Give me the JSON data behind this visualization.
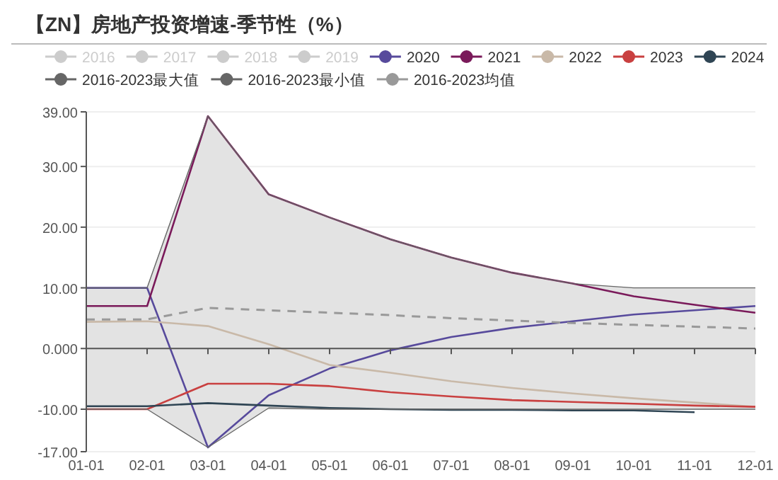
{
  "chart_data": {
    "type": "line",
    "title": "【ZN】房地产投资增速-季节性（%）",
    "categories": [
      "01-01",
      "02-01",
      "03-01",
      "04-01",
      "05-01",
      "06-01",
      "07-01",
      "08-01",
      "09-01",
      "10-01",
      "11-01",
      "12-01"
    ],
    "ylim": [
      -17,
      39
    ],
    "yticks": [
      {
        "value": 39,
        "label": "39.00"
      },
      {
        "value": 30,
        "label": "30.00"
      },
      {
        "value": 20,
        "label": "20.00"
      },
      {
        "value": 10,
        "label": "10.00"
      },
      {
        "value": 0,
        "label": "0.000"
      },
      {
        "value": -10,
        "label": "-10.00"
      },
      {
        "value": -17,
        "label": "-17.00"
      }
    ],
    "grid": "y",
    "legend": "top",
    "series": [
      {
        "name": "2016",
        "color": "#cccccc",
        "values": [
          null,
          null,
          null,
          null,
          null,
          null,
          null,
          null,
          null,
          null,
          null,
          null
        ]
      },
      {
        "name": "2017",
        "color": "#cccccc",
        "values": [
          null,
          null,
          null,
          null,
          null,
          null,
          null,
          null,
          null,
          null,
          null,
          null
        ]
      },
      {
        "name": "2018",
        "color": "#cccccc",
        "values": [
          null,
          null,
          null,
          null,
          null,
          null,
          null,
          null,
          null,
          null,
          null,
          null
        ]
      },
      {
        "name": "2019",
        "color": "#cccccc",
        "values": [
          null,
          null,
          null,
          null,
          null,
          null,
          null,
          null,
          null,
          null,
          null,
          null
        ]
      },
      {
        "name": "2020",
        "color": "#574a9c",
        "values": [
          10,
          10,
          -16.3,
          -7.7,
          -3.3,
          -0.3,
          1.9,
          3.4,
          4.5,
          5.6,
          6.3,
          7.0
        ]
      },
      {
        "name": "2021",
        "color": "#7a1a5a",
        "values": [
          7,
          7,
          38.3,
          25.4,
          21.6,
          18.0,
          15.0,
          12.5,
          10.7,
          8.6,
          7.2,
          5.9
        ]
      },
      {
        "name": "2022",
        "color": "#c9b9a8",
        "values": [
          4.4,
          4.5,
          3.7,
          0.7,
          -2.7,
          -4.0,
          -5.4,
          -6.5,
          -7.4,
          -8.2,
          -8.9,
          -9.6
        ]
      },
      {
        "name": "2023",
        "color": "#c94040",
        "values": [
          -10,
          -10,
          -5.8,
          -5.8,
          -6.2,
          -7.2,
          -7.9,
          -8.5,
          -8.8,
          -9.1,
          -9.4,
          -9.6
        ]
      },
      {
        "name": "2024",
        "color": "#2f4554",
        "values": [
          -9.5,
          -9.5,
          -9.0,
          -9.4,
          -9.8,
          -10.0,
          -10.1,
          -10.1,
          -10.2,
          -10.2,
          -10.5,
          null
        ]
      },
      {
        "name": "2016-2023最大值",
        "color": "#666666",
        "values": [
          10,
          10,
          38.3,
          25.4,
          21.6,
          18.0,
          15.0,
          12.5,
          10.7,
          10,
          10,
          10
        ]
      },
      {
        "name": "2016-2023最小值",
        "color": "#666666",
        "values": [
          -10,
          -10,
          -16.3,
          -9.8,
          -10,
          -10,
          -10,
          -10,
          -10,
          -10,
          -10,
          -10
        ]
      },
      {
        "name": "2016-2023均值",
        "color": "#999999",
        "line_style": "dashed",
        "values": [
          4.8,
          4.8,
          6.7,
          6.3,
          5.9,
          5.5,
          5.0,
          4.6,
          4.2,
          3.9,
          3.6,
          3.3
        ],
        "lower": [
          -10,
          -10,
          -16.3,
          -9.8,
          -10,
          -10,
          -10,
          -10,
          -10,
          -10,
          -10,
          -10
        ],
        "upper": [
          10,
          10,
          38.3,
          25.4,
          21.6,
          18.0,
          15.0,
          12.5,
          10.7,
          10,
          10,
          10
        ]
      }
    ]
  }
}
